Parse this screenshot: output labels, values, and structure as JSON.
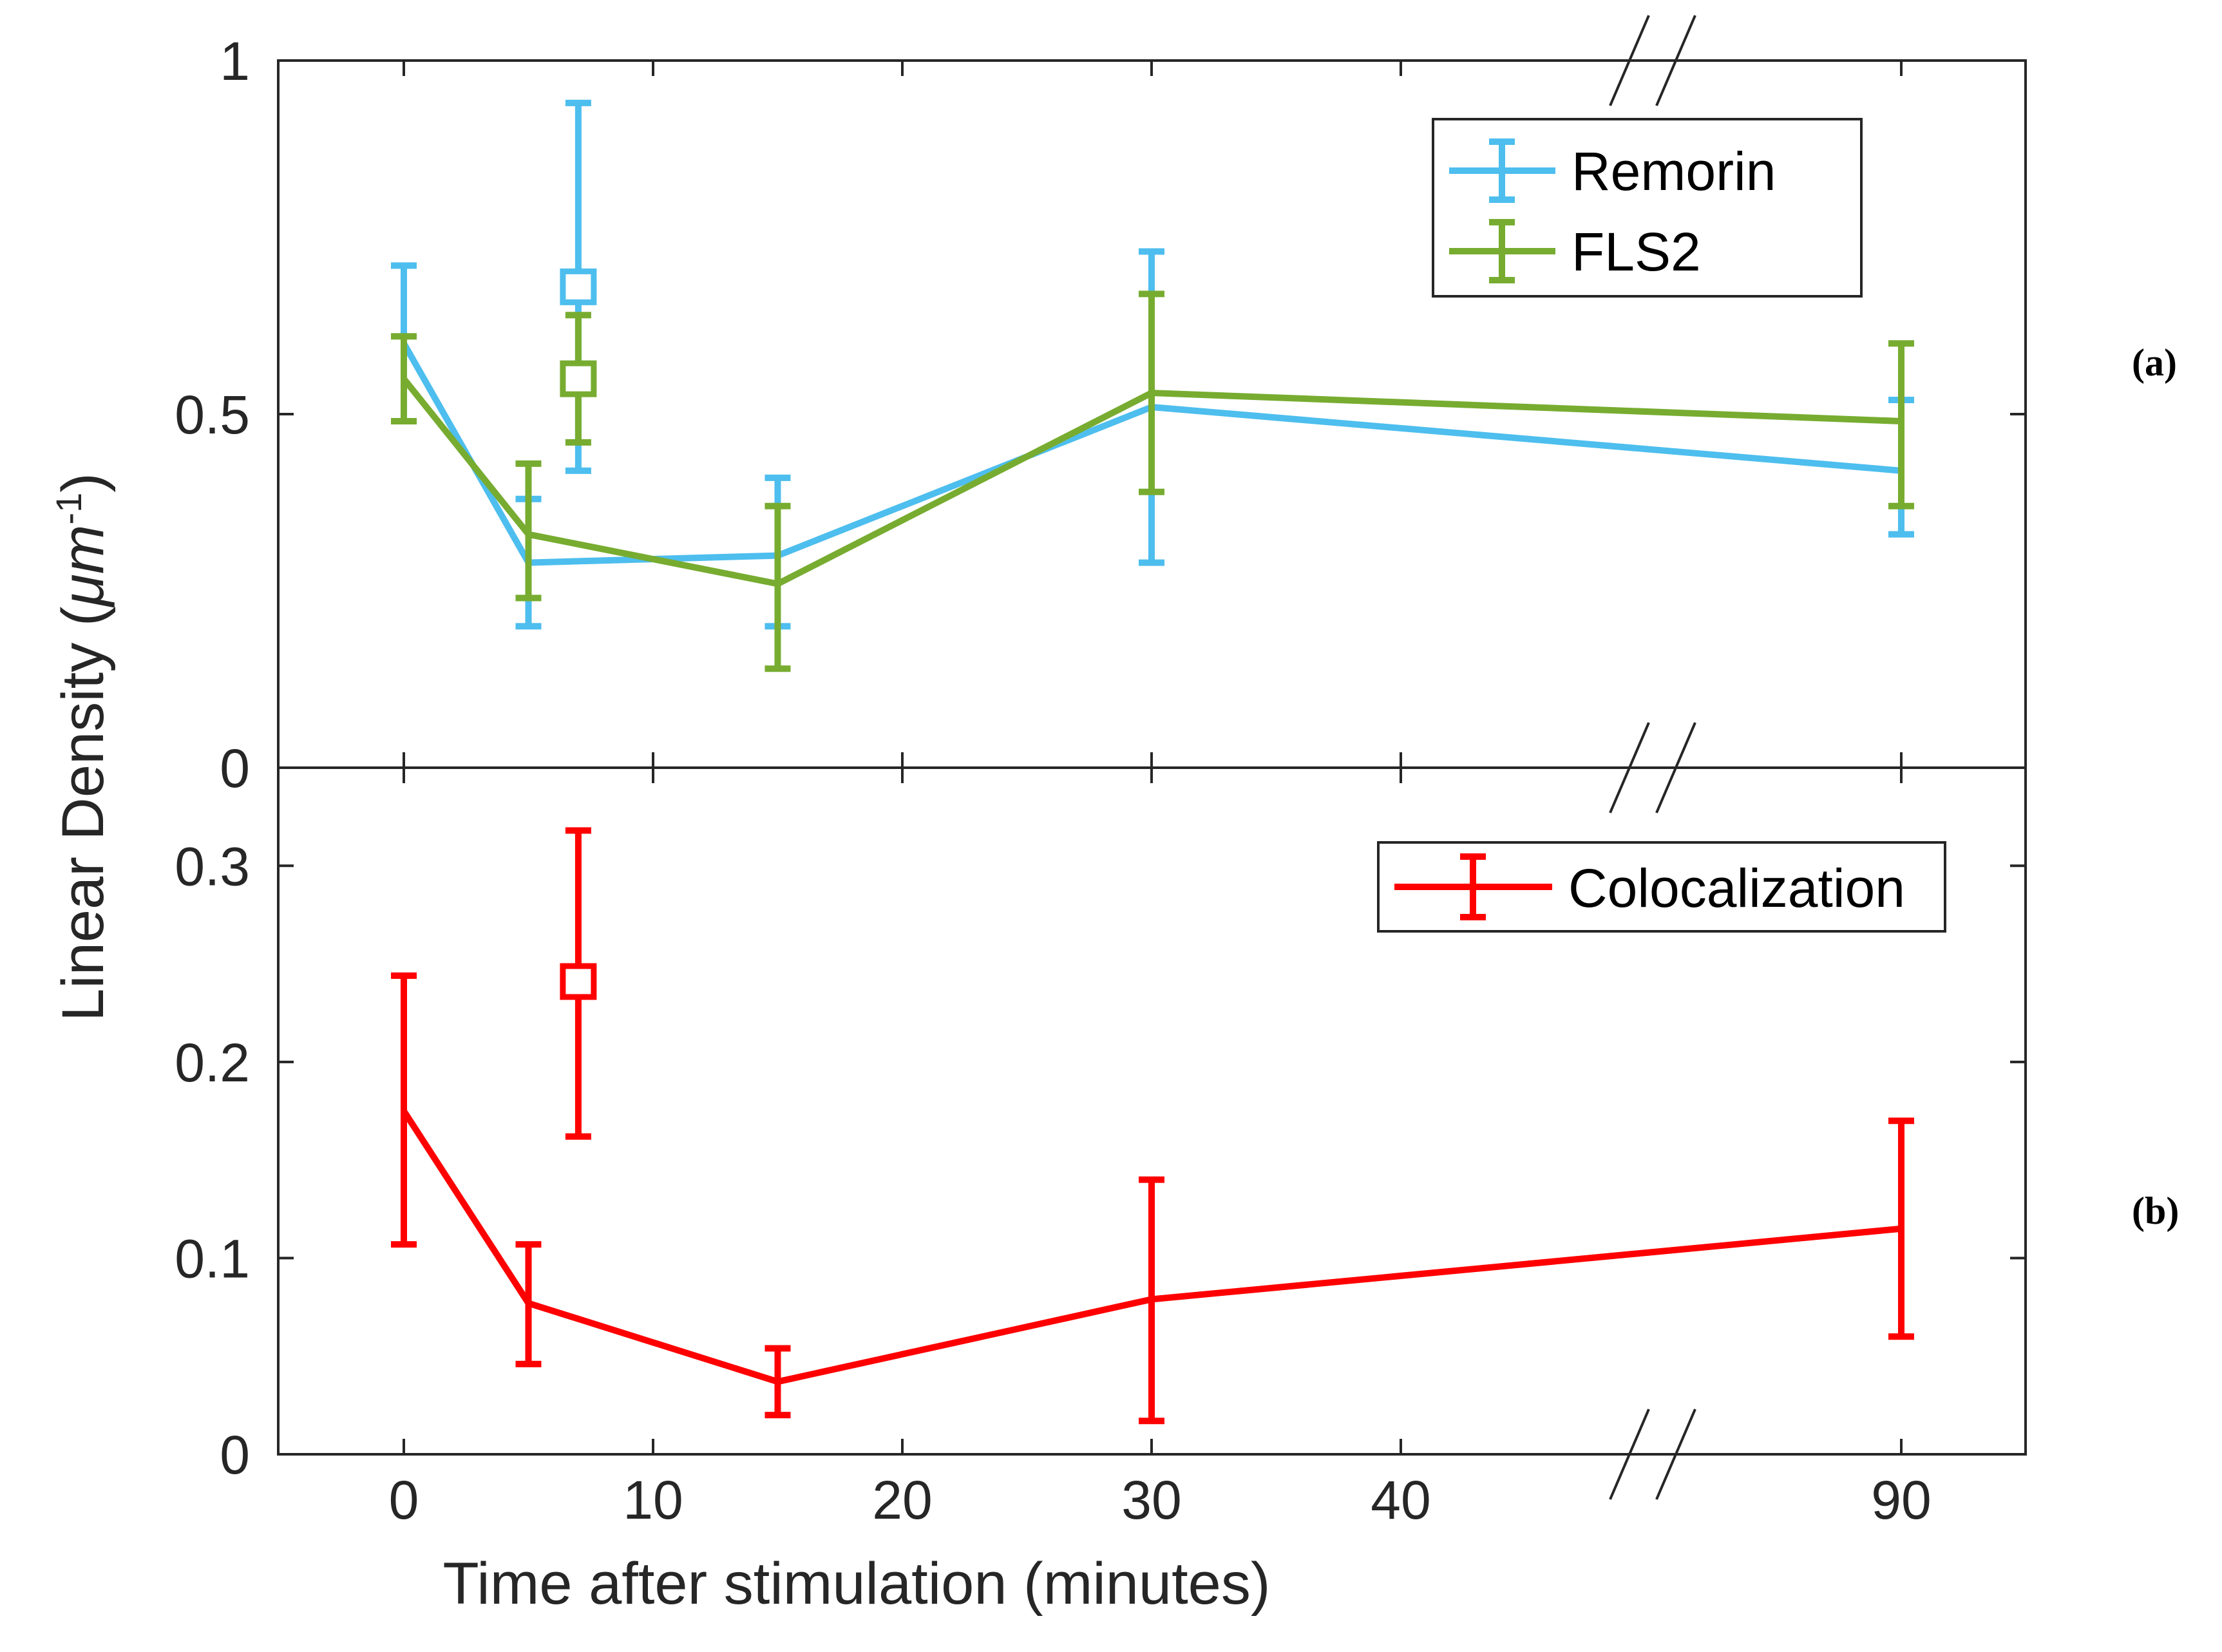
{
  "chart_data": [
    {
      "panel": "(a)",
      "type": "line",
      "ylabel": "Linear Density (",
      "ylabel_unit": "μm",
      "ylabel_exp": "-1",
      "ylabel_close": ")",
      "ylim": [
        0,
        1
      ],
      "yticks": [
        {
          "value": 0,
          "label": "0"
        },
        {
          "value": 0.5,
          "label": "0.5"
        },
        {
          "value": 1,
          "label": "1"
        }
      ],
      "series": [
        {
          "name": "Remorin",
          "color": "#4DBEEE",
          "x": [
            0,
            5,
            15,
            30,
            90
          ],
          "y": [
            0.6,
            0.29,
            0.3,
            0.51,
            0.42
          ],
          "err_low": [
            0.49,
            0.2,
            0.2,
            0.29,
            0.33
          ],
          "err_high": [
            0.71,
            0.38,
            0.41,
            0.73,
            0.52
          ],
          "extra_point": {
            "x": 7,
            "y": 0.68,
            "err_low": 0.42,
            "err_high": 0.94
          }
        },
        {
          "name": "FLS2",
          "color": "#77AC30",
          "x": [
            0,
            5,
            15,
            30,
            90
          ],
          "y": [
            0.55,
            0.33,
            0.26,
            0.53,
            0.49
          ],
          "err_low": [
            0.49,
            0.24,
            0.14,
            0.39,
            0.37
          ],
          "err_high": [
            0.61,
            0.43,
            0.37,
            0.67,
            0.6
          ],
          "extra_point": {
            "x": 7,
            "y": 0.55,
            "err_low": 0.46,
            "err_high": 0.64
          }
        }
      ]
    },
    {
      "panel": "(b)",
      "type": "line",
      "ylim": [
        0,
        0.35
      ],
      "yticks": [
        {
          "value": 0,
          "label": "0"
        },
        {
          "value": 0.1,
          "label": "0.1"
        },
        {
          "value": 0.2,
          "label": "0.2"
        },
        {
          "value": 0.3,
          "label": "0.3"
        }
      ],
      "series": [
        {
          "name": "Colocalization",
          "color": "#FF0000",
          "x": [
            0,
            5,
            15,
            30,
            90
          ],
          "y": [
            0.175,
            0.077,
            0.037,
            0.079,
            0.115
          ],
          "err_low": [
            0.107,
            0.046,
            0.02,
            0.017,
            0.06
          ],
          "err_high": [
            0.244,
            0.107,
            0.054,
            0.14,
            0.17
          ],
          "extra_point": {
            "x": 7,
            "y": 0.241,
            "err_low": 0.162,
            "err_high": 0.318
          }
        }
      ]
    }
  ],
  "x_axis": {
    "label": "Time after stimulation (minutes)",
    "ticks": [
      {
        "value": 0,
        "label": "0"
      },
      {
        "value": 10,
        "label": "10"
      },
      {
        "value": 20,
        "label": "20"
      },
      {
        "value": 30,
        "label": "30"
      },
      {
        "value": 40,
        "label": "40"
      },
      {
        "value": 90,
        "label": "90"
      }
    ],
    "axis_break": "between 40 and 90"
  }
}
